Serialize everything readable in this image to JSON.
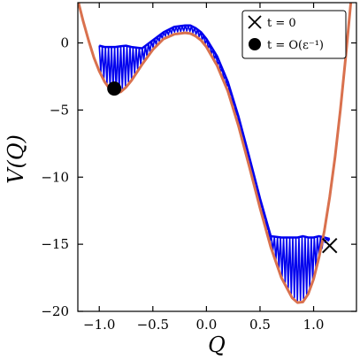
{
  "chart_data": {
    "type": "line",
    "xlabel": "Q",
    "ylabel": "V(Q)",
    "xlim": [
      -1.2,
      1.4
    ],
    "ylim": [
      -20,
      3
    ],
    "xticks": [
      -1.0,
      -0.5,
      0.0,
      0.5,
      1.0
    ],
    "xtick_labels": [
      "−1.0",
      "−0.5",
      "0.0",
      "0.5",
      "1.0"
    ],
    "yticks": [
      0,
      -5,
      -10,
      -15,
      -20
    ],
    "ytick_labels": [
      "0",
      "−5",
      "−10",
      "−15",
      "−20"
    ],
    "grid": false,
    "legend_position": "top-right",
    "series": [
      {
        "color": "#d9714e",
        "style": "line",
        "x": [
          -1.2,
          -1.15,
          -1.1,
          -1.05,
          -1.0,
          -0.95,
          -0.9,
          -0.85,
          -0.8,
          -0.75,
          -0.7,
          -0.6,
          -0.5,
          -0.4,
          -0.3,
          -0.2,
          -0.15,
          -0.1,
          -0.05,
          0.0,
          0.1,
          0.2,
          0.3,
          0.4,
          0.5,
          0.6,
          0.7,
          0.8,
          0.85,
          0.9,
          0.95,
          1.0,
          1.05,
          1.1,
          1.15,
          1.2,
          1.25,
          1.3,
          1.35
        ],
        "y": [
          3.2,
          1.6,
          0.2,
          -1.1,
          -2.1,
          -2.9,
          -3.45,
          -3.7,
          -3.65,
          -3.3,
          -2.8,
          -1.6,
          -0.5,
          0.3,
          0.65,
          0.75,
          0.7,
          0.5,
          0.2,
          -0.3,
          -1.7,
          -3.6,
          -6.2,
          -9.2,
          -12.3,
          -15.2,
          -17.5,
          -19.0,
          -19.35,
          -19.3,
          -18.7,
          -17.6,
          -16.0,
          -14.0,
          -11.5,
          -8.5,
          -5.0,
          -1.0,
          3.2
        ]
      },
      {
        "color": "#0000ee",
        "style": "band",
        "x": [
          -1.0,
          -0.95,
          -0.9,
          -0.85,
          -0.8,
          -0.75,
          -0.7,
          -0.6,
          -0.5,
          -0.4,
          -0.3,
          -0.2,
          -0.15,
          -0.1,
          -0.05,
          0.0,
          0.1,
          0.2,
          0.3,
          0.4,
          0.5,
          0.6,
          0.7,
          0.8,
          0.85,
          0.9,
          0.95,
          1.0,
          1.05,
          1.1,
          1.15
        ],
        "upper": [
          -0.2,
          -0.3,
          -0.3,
          -0.3,
          -0.25,
          -0.2,
          -0.3,
          -0.4,
          0.2,
          0.8,
          1.2,
          1.3,
          1.3,
          1.1,
          0.8,
          0.3,
          -1.0,
          -2.9,
          -5.5,
          -8.5,
          -11.6,
          -14.4,
          -14.5,
          -14.5,
          -14.5,
          -14.4,
          -14.5,
          -14.5,
          -14.4,
          -14.5,
          -14.6
        ],
        "lower": [
          -2.0,
          -2.8,
          -3.3,
          -3.55,
          -3.5,
          -3.15,
          -2.65,
          -1.45,
          -0.35,
          0.45,
          0.8,
          0.9,
          0.85,
          0.65,
          0.35,
          -0.15,
          -1.55,
          -3.45,
          -6.05,
          -9.05,
          -12.15,
          -15.05,
          -17.35,
          -18.85,
          -19.2,
          -19.15,
          -18.55,
          -17.45,
          -15.85,
          -14.9,
          -14.7
        ]
      }
    ],
    "markers": [
      {
        "label": "t = 0",
        "symbol": "x",
        "x": 1.15,
        "y": -15.1
      },
      {
        "label": "t = O(ε⁻¹)",
        "symbol": "dot",
        "x": -0.86,
        "y": -3.4
      }
    ]
  }
}
